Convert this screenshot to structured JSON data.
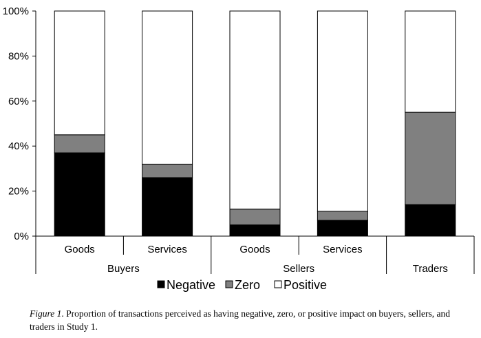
{
  "chart_data": {
    "type": "bar",
    "stacked": true,
    "percent": true,
    "ylim": [
      0,
      100
    ],
    "y_ticks": [
      "0%",
      "20%",
      "40%",
      "60%",
      "80%",
      "100%"
    ],
    "categories": [
      "Goods",
      "Services",
      "Goods",
      "Services",
      "Traders"
    ],
    "groups": [
      {
        "label": "Buyers",
        "span": 2
      },
      {
        "label": "Sellers",
        "span": 2
      },
      {
        "label": "Traders",
        "span": 1
      }
    ],
    "series": [
      {
        "name": "Negative",
        "color": "#000000",
        "values": [
          37,
          26,
          5,
          7,
          14
        ]
      },
      {
        "name": "Zero",
        "color": "#808080",
        "values": [
          8,
          6,
          7,
          4,
          41
        ]
      },
      {
        "name": "Positive",
        "color": "#ffffff",
        "values": [
          55,
          68,
          88,
          89,
          45
        ]
      }
    ],
    "legend": [
      "Negative",
      "Zero",
      "Positive"
    ]
  },
  "caption": {
    "label": "Figure 1",
    "text": ". Proportion of transactions perceived as having negative, zero, or positive impact on buyers, sellers, and traders in Study 1."
  }
}
